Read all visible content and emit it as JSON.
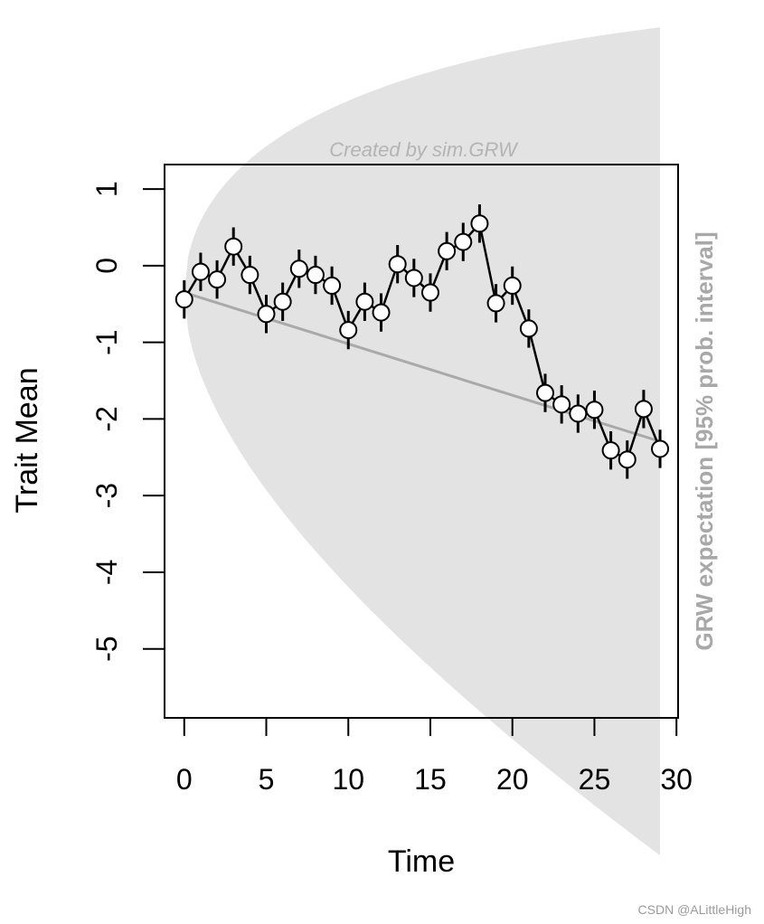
{
  "chart_data": {
    "type": "line",
    "subtitle": "Created by sim.GRW",
    "xlabel": "Time",
    "ylabel": "Trait Mean",
    "right_label": "GRW expectation [95% prob. interval]",
    "xlim": [
      -1.2,
      30.1
    ],
    "ylim": [
      -5.9,
      1.32
    ],
    "x_ticks": [
      0,
      5,
      10,
      15,
      20,
      25,
      30
    ],
    "y_ticks": [
      1,
      0,
      -1,
      -2,
      -3,
      -4,
      -5
    ],
    "series": [
      {
        "name": "Trait Mean",
        "x": [
          0,
          1,
          2,
          3,
          4,
          5,
          6,
          7,
          8,
          9,
          10,
          11,
          12,
          13,
          14,
          15,
          16,
          17,
          18,
          19,
          20,
          21,
          22,
          23,
          24,
          25,
          26,
          27,
          28,
          29
        ],
        "values": [
          -0.44,
          -0.08,
          -0.18,
          0.25,
          -0.12,
          -0.63,
          -0.47,
          -0.04,
          -0.12,
          -0.26,
          -0.84,
          -0.47,
          -0.61,
          0.02,
          -0.16,
          -0.35,
          0.19,
          0.31,
          0.55,
          -0.49,
          -0.26,
          -0.82,
          -1.66,
          -1.81,
          -1.93,
          -1.88,
          -2.41,
          -2.53,
          -1.87,
          -2.39
        ],
        "error": 0.25
      }
    ],
    "expectation": {
      "start": -0.35,
      "slope": -0.067,
      "spread": 0.262,
      "x_max": 29
    }
  },
  "watermark": "CSDN @ALittleHigh"
}
